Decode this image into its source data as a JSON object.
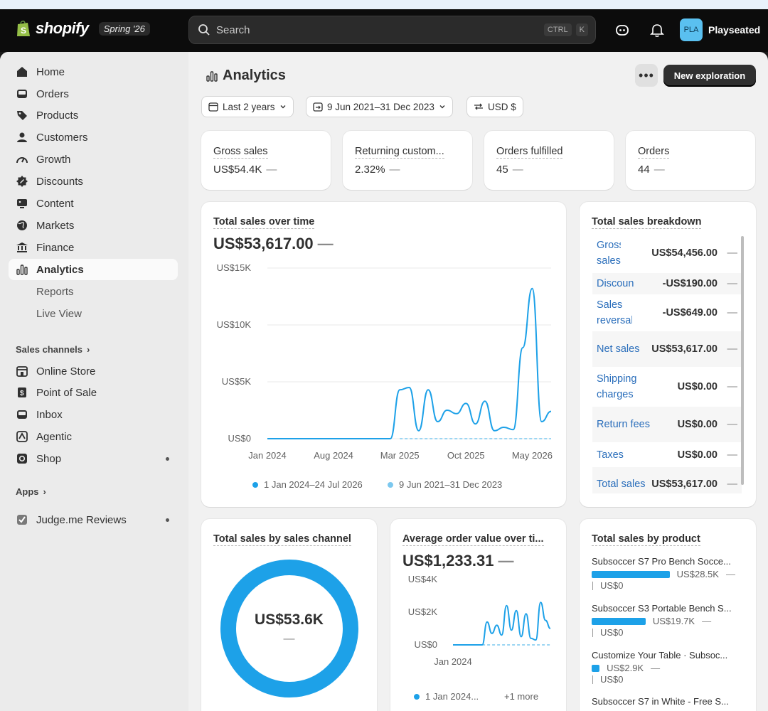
{
  "topbar": {
    "brand": "shopify",
    "edition": "Spring '26",
    "search_placeholder": "Search",
    "shortcut_ctrl": "CTRL",
    "shortcut_key": "K",
    "avatar_initials": "PLA",
    "store_name": "Playseated"
  },
  "sidebar": {
    "items": [
      {
        "label": "Home",
        "icon": "home-icon"
      },
      {
        "label": "Orders",
        "icon": "inbox-icon"
      },
      {
        "label": "Products",
        "icon": "tag-icon"
      },
      {
        "label": "Customers",
        "icon": "person-icon"
      },
      {
        "label": "Growth",
        "icon": "gauge-icon"
      },
      {
        "label": "Discounts",
        "icon": "discount-icon"
      },
      {
        "label": "Content",
        "icon": "image-icon"
      },
      {
        "label": "Markets",
        "icon": "globe-icon"
      },
      {
        "label": "Finance",
        "icon": "bank-icon"
      },
      {
        "label": "Analytics",
        "icon": "chart-icon"
      }
    ],
    "subitems": [
      "Reports",
      "Live View"
    ],
    "sales_channels_label": "Sales channels",
    "channels": [
      {
        "label": "Online Store",
        "icon": "store-icon"
      },
      {
        "label": "Point of Sale",
        "icon": "pos-icon"
      },
      {
        "label": "Inbox",
        "icon": "inbox-icon"
      },
      {
        "label": "Agentic",
        "icon": "agentic-icon"
      },
      {
        "label": "Shop",
        "icon": "shop-icon"
      }
    ],
    "apps_label": "Apps",
    "apps": [
      {
        "label": "Judge.me Reviews",
        "icon": "judgeme-icon"
      }
    ]
  },
  "page": {
    "title": "Analytics",
    "new_button": "New exploration",
    "filters": {
      "range": "Last 2 years",
      "compare": "9 Jun 2021–31 Dec 2023",
      "currency": "USD $"
    }
  },
  "metrics": [
    {
      "label": "Gross sales",
      "value": "US$54.4K"
    },
    {
      "label": "Returning custom...",
      "value": "2.32%"
    },
    {
      "label": "Orders fulfilled",
      "value": "45"
    },
    {
      "label": "Orders",
      "value": "44"
    }
  ],
  "sales_over_time": {
    "title": "Total sales over time",
    "total": "US$53,617.00",
    "legend": [
      "1 Jan 2024–24 Jul 2026",
      "9 Jun 2021–31 Dec 2023"
    ]
  },
  "breakdown": {
    "title": "Total sales breakdown",
    "rows": [
      {
        "label": "Gross sales",
        "value": "US$54,456.00"
      },
      {
        "label": "Discounts",
        "value": "-US$190.00"
      },
      {
        "label": "Sales reversals",
        "value": "-US$649.00"
      },
      {
        "label": "Net sales",
        "value": "US$53,617.00"
      },
      {
        "label": "Shipping charges",
        "value": "US$0.00"
      },
      {
        "label": "Return fees",
        "value": "US$0.00"
      },
      {
        "label": "Taxes",
        "value": "US$0.00"
      },
      {
        "label": "Total sales",
        "value": "US$53,617.00"
      }
    ]
  },
  "by_channel": {
    "title": "Total sales by sales channel",
    "center_value": "US$53.6K"
  },
  "aov": {
    "title": "Average order value over ti...",
    "total": "US$1,233.31",
    "legend_primary": "1 Jan 2024...",
    "legend_more": "+1 more"
  },
  "by_product": {
    "title": "Total sales by product",
    "products": [
      {
        "name": "Subsoccer S7 Pro Bench Socce...",
        "value": "US$28.5K",
        "share": 0.535,
        "compare": "US$0"
      },
      {
        "name": "Subsoccer S3 Portable Bench S...",
        "value": "US$19.7K",
        "share": 0.37,
        "compare": "US$0"
      },
      {
        "name": "Customize Your Table · Subsoc...",
        "value": "US$2.9K",
        "share": 0.054,
        "compare": "US$0"
      },
      {
        "name": "Subsoccer S7 in White - Free S...",
        "value": "",
        "share": 0,
        "compare": ""
      }
    ]
  },
  "colors": {
    "accent": "#1da1e8",
    "compare": "#7cc8ef",
    "link": "#2a6ebb"
  },
  "chart_data": [
    {
      "type": "line",
      "title": "Total sales over time",
      "x_ticks": [
        "Jan 2024",
        "Aug 2024",
        "Mar 2025",
        "Oct 2025",
        "May 2026"
      ],
      "y_ticks": [
        "US$0",
        "US$5K",
        "US$10K",
        "US$15K"
      ],
      "ylim": [
        0,
        15000
      ],
      "series": [
        {
          "name": "1 Jan 2024–24 Jul 2026",
          "x": [
            "2024-01",
            "2024-04",
            "2024-08",
            "2024-12",
            "2025-02",
            "2025-03",
            "2025-04",
            "2025-05",
            "2025-06",
            "2025-07",
            "2025-08",
            "2025-09",
            "2025-10",
            "2025-11",
            "2025-12",
            "2026-01",
            "2026-02",
            "2026-03",
            "2026-04",
            "2026-05",
            "2026-06",
            "2026-07"
          ],
          "y": [
            0,
            0,
            0,
            0,
            0,
            4300,
            4500,
            700,
            4300,
            1500,
            2500,
            2200,
            3100,
            1300,
            3300,
            700,
            1000,
            800,
            8000,
            13200,
            1500,
            2400
          ]
        },
        {
          "name": "9 Jun 2021–31 Dec 2023",
          "x": [
            "2025-03",
            "2026-07"
          ],
          "y": [
            0,
            0
          ]
        }
      ]
    },
    {
      "type": "pie",
      "title": "Total sales by sales channel",
      "values": [
        53600
      ],
      "center_label": "US$53.6K"
    },
    {
      "type": "line",
      "title": "Average order value over ti...",
      "x_ticks": [
        "Jan 2024"
      ],
      "y_ticks": [
        "US$0",
        "US$2K",
        "US$4K"
      ],
      "ylim": [
        0,
        4000
      ],
      "series": [
        {
          "name": "1 Jan 2024...",
          "x": [
            0,
            6,
            7,
            8,
            9,
            10,
            11,
            12,
            13,
            14,
            15,
            16,
            17,
            18,
            19,
            20
          ],
          "y": [
            0,
            0,
            1400,
            700,
            1200,
            600,
            2400,
            900,
            2100,
            500,
            1900,
            400,
            300,
            2600,
            1500,
            1000
          ]
        }
      ]
    },
    {
      "type": "bar",
      "title": "Total sales by product",
      "categories": [
        "Subsoccer S7 Pro Bench Socce...",
        "Subsoccer S3 Portable Bench S...",
        "Customize Your Table · Subsoc..."
      ],
      "values": [
        28500,
        19700,
        2900
      ]
    }
  ]
}
